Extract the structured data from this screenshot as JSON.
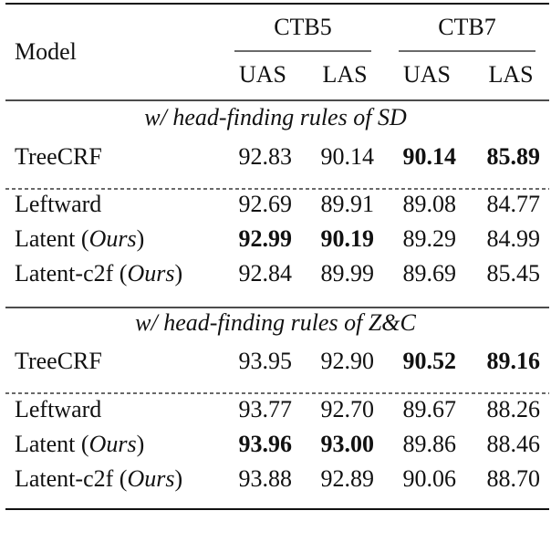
{
  "table": {
    "header": {
      "model": "Model",
      "groups": [
        "CTB5",
        "CTB7"
      ],
      "columns": [
        "UAS",
        "LAS",
        "UAS",
        "LAS"
      ]
    },
    "sections": [
      {
        "title": "w/ head-finding rules of SD",
        "rows": [
          {
            "model": [
              "TreeCRF"
            ],
            "values": [
              "92.83",
              "90.14",
              "90.14",
              "85.89"
            ],
            "bold": [
              2,
              3
            ]
          },
          {
            "model": [
              "Leftward"
            ],
            "values": [
              "92.69",
              "89.91",
              "89.08",
              "84.77"
            ],
            "bold": []
          },
          {
            "model": [
              "Latent (",
              "Ours",
              ")"
            ],
            "values": [
              "92.99",
              "90.19",
              "89.29",
              "84.99"
            ],
            "bold": [
              0,
              1
            ]
          },
          {
            "model": [
              "Latent-c2f (",
              "Ours",
              ")"
            ],
            "values": [
              "92.84",
              "89.99",
              "89.69",
              "85.45"
            ],
            "bold": []
          }
        ]
      },
      {
        "title": "w/ head-finding rules of Z&C",
        "rows": [
          {
            "model": [
              "TreeCRF"
            ],
            "values": [
              "93.95",
              "92.90",
              "90.52",
              "89.16"
            ],
            "bold": [
              2,
              3
            ]
          },
          {
            "model": [
              "Leftward"
            ],
            "values": [
              "93.77",
              "92.70",
              "89.67",
              "88.26"
            ],
            "bold": []
          },
          {
            "model": [
              "Latent (",
              "Ours",
              ")"
            ],
            "values": [
              "93.96",
              "93.00",
              "89.86",
              "88.46"
            ],
            "bold": [
              0,
              1
            ]
          },
          {
            "model": [
              "Latent-c2f (",
              "Ours",
              ")"
            ],
            "values": [
              "93.88",
              "92.89",
              "90.06",
              "88.70"
            ],
            "bold": []
          }
        ]
      }
    ]
  }
}
